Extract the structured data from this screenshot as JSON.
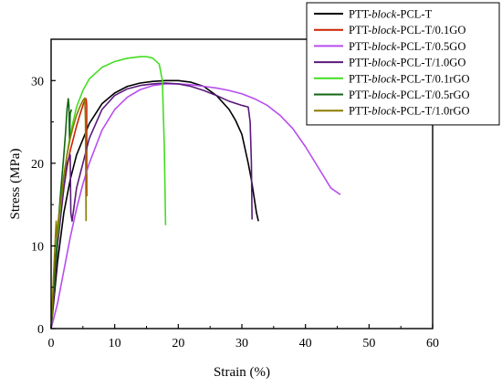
{
  "chart_data": {
    "type": "line",
    "title": "",
    "xlabel": "Strain (%)",
    "ylabel": "Stress (MPa)",
    "xlim": [
      0,
      60
    ],
    "ylim": [
      0,
      35
    ],
    "xticks": [
      "0",
      "10",
      "20",
      "30",
      "40",
      "50",
      "60"
    ],
    "yticks": [
      "0",
      "10",
      "20",
      "30"
    ],
    "grid": false,
    "legend_position": "top-right",
    "series": [
      {
        "name": "PTT-block-PCL-T",
        "color": "#000000",
        "x": [
          0,
          1,
          2,
          3,
          4,
          6,
          8,
          10,
          12,
          14,
          16,
          18,
          20,
          22,
          24,
          26,
          28,
          29,
          30,
          31,
          31.5,
          32,
          32.3,
          32.6
        ],
        "y": [
          0,
          8,
          14,
          18,
          21,
          24.8,
          27.2,
          28.5,
          29.3,
          29.7,
          29.9,
          30.0,
          30.0,
          29.8,
          29.3,
          28.2,
          26.5,
          25.2,
          23.5,
          20.0,
          18.0,
          15.5,
          14.0,
          13.0
        ]
      },
      {
        "name": "PTT-block-PCL-T/0.1GO",
        "color": "#cc2200",
        "x": [
          0,
          0.5,
          1,
          1.5,
          2,
          2.5,
          3,
          3.5,
          4,
          4.5,
          5,
          5.3,
          5.5,
          5.6,
          5.6
        ],
        "y": [
          0,
          5,
          10,
          14,
          17,
          19.5,
          21.5,
          23,
          24.5,
          25.8,
          27,
          27.6,
          27.8,
          27.0,
          16.0
        ]
      },
      {
        "name": "PTT-block-PCL-T/0.5GO",
        "color": "#b84cf0",
        "x": [
          0,
          1,
          2,
          3,
          4,
          5,
          6,
          8,
          10,
          12,
          14,
          16,
          18,
          20,
          22,
          24,
          26,
          28,
          30,
          32,
          34,
          36,
          38,
          40,
          42,
          44,
          45.5
        ],
        "y": [
          0,
          3,
          7,
          11,
          14.5,
          17.5,
          20,
          24,
          26.5,
          28,
          28.9,
          29.4,
          29.6,
          29.6,
          29.5,
          29.3,
          29.1,
          28.8,
          28.4,
          27.8,
          27.0,
          25.8,
          24.2,
          22.0,
          19.5,
          17.0,
          16.2
        ]
      },
      {
        "name": "PTT-block-PCL-T/1.0GO",
        "color": "#5a1a7a",
        "x": [
          0,
          0.5,
          1,
          2,
          2.5,
          3,
          3.1,
          3.3,
          4,
          6,
          8,
          10,
          12,
          14,
          16,
          18,
          20,
          22,
          24,
          26,
          28,
          30,
          31,
          31.3,
          31.5,
          31.6
        ],
        "y": [
          0,
          5,
          10,
          17,
          20,
          21,
          14,
          13,
          17,
          23,
          26.5,
          28.2,
          29.0,
          29.4,
          29.6,
          29.7,
          29.6,
          29.3,
          28.8,
          28.2,
          27.5,
          27.0,
          26.8,
          25.0,
          20.0,
          13.2
        ]
      },
      {
        "name": "PTT-block-PCL-T/0.1rGO",
        "color": "#44dd22",
        "x": [
          0,
          0.5,
          1,
          1.5,
          2,
          3,
          4,
          5,
          6,
          8,
          10,
          12,
          14,
          15,
          16,
          17,
          17.5,
          17.8,
          18
        ],
        "y": [
          0,
          6,
          11,
          15,
          18.5,
          23.5,
          26.8,
          28.8,
          30.2,
          31.6,
          32.3,
          32.7,
          32.9,
          32.9,
          32.7,
          32.0,
          30.0,
          22.0,
          12.5
        ]
      },
      {
        "name": "PTT-block-PCL-T/0.5rGO",
        "color": "#116611",
        "x": [
          0,
          0.5,
          1,
          1.5,
          2,
          2.3,
          2.5,
          2.7,
          2.8,
          2.9,
          3.0,
          3.2
        ],
        "y": [
          0,
          6,
          11.5,
          16.5,
          21,
          24,
          26.5,
          27.8,
          27.0,
          23.0,
          26.0,
          26.5
        ]
      },
      {
        "name": "PTT-block-PCL-T/1.0rGO",
        "color": "#8a7a00",
        "x": [
          0,
          0.3,
          0.6,
          0.8,
          0.9,
          1.2,
          1.6,
          2.0,
          2.5,
          3.0,
          3.5,
          4.0,
          4.5,
          5.0,
          5.3,
          5.4,
          5.5
        ],
        "y": [
          0,
          5,
          10,
          13,
          11,
          13.5,
          16,
          18.5,
          21,
          23,
          24.5,
          25.8,
          26.8,
          27.6,
          27.9,
          25.0,
          13.0
        ]
      }
    ]
  }
}
